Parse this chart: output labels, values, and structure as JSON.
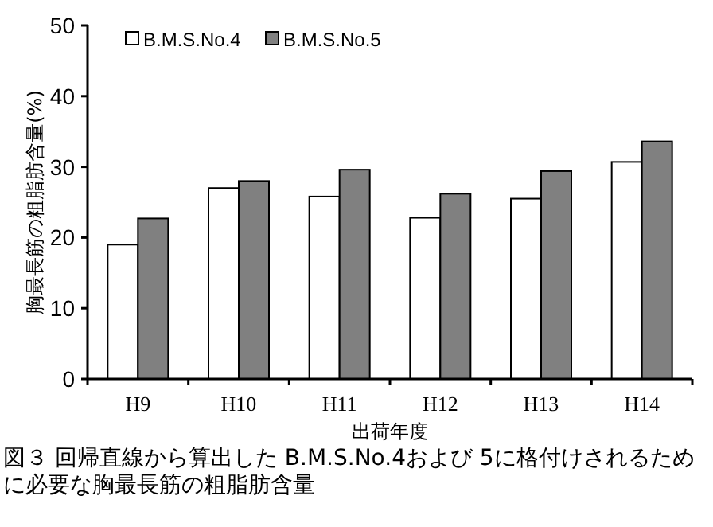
{
  "chart_data": {
    "type": "bar",
    "ylabel": "胸最長筋の粗脂肪含量(%)",
    "xlabel": "出荷年度",
    "categories": [
      "H9",
      "H10",
      "H11",
      "H12",
      "H13",
      "H14"
    ],
    "series": [
      {
        "name": "B.M.S.No.4",
        "color": "#ffffff",
        "values": [
          19.0,
          27.0,
          25.8,
          22.8,
          25.5,
          30.7
        ]
      },
      {
        "name": "B.M.S.No.5",
        "color": "#808080",
        "values": [
          22.7,
          28.0,
          29.6,
          26.2,
          29.4,
          33.6
        ]
      }
    ],
    "ylim": [
      0,
      50
    ],
    "yticks": [
      0,
      10,
      20,
      30,
      40,
      50
    ],
    "legend": "top left",
    "grid": false,
    "annotations": [
      "図３ 回帰直線から算出した B.M.S.No.4および 5に格付けされるために必要な胸最長筋の粗脂肪含量"
    ]
  }
}
